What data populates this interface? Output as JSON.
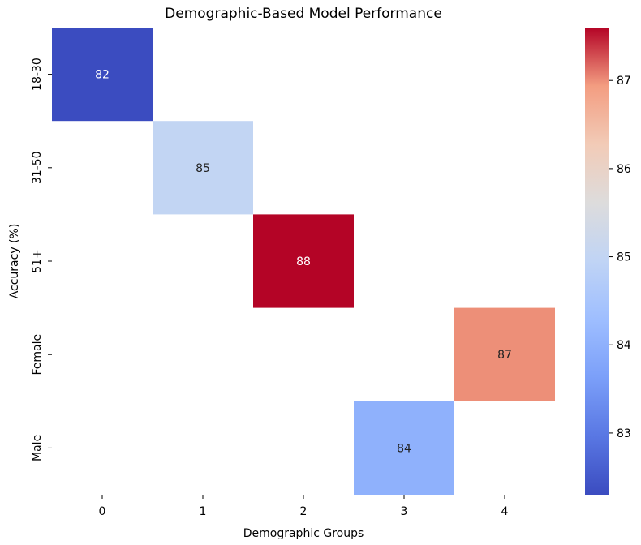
{
  "chart_data": {
    "type": "heatmap",
    "title": "Demographic-Based Model Performance",
    "xlabel": "Demographic Groups",
    "ylabel": "Accuracy (%)",
    "x_categories": [
      "0",
      "1",
      "2",
      "3",
      "4"
    ],
    "y_categories": [
      "18-30",
      "31-50",
      "51+",
      "Female",
      "Male"
    ],
    "cells": [
      {
        "row": 0,
        "col": 0,
        "value": 82,
        "label": "82"
      },
      {
        "row": 1,
        "col": 1,
        "value": 85,
        "label": "85"
      },
      {
        "row": 2,
        "col": 2,
        "value": 88,
        "label": "88"
      },
      {
        "row": 3,
        "col": 4,
        "value": 87,
        "label": "87"
      },
      {
        "row": 4,
        "col": 3,
        "value": 84,
        "label": "84"
      }
    ],
    "colormap": "coolwarm",
    "colorbar": {
      "range": [
        82.3,
        87.6
      ],
      "ticks": [
        83,
        84,
        85,
        86,
        87
      ],
      "tick_labels": [
        "83",
        "84",
        "85",
        "86",
        "87"
      ],
      "placement": "right"
    },
    "grid": false
  }
}
